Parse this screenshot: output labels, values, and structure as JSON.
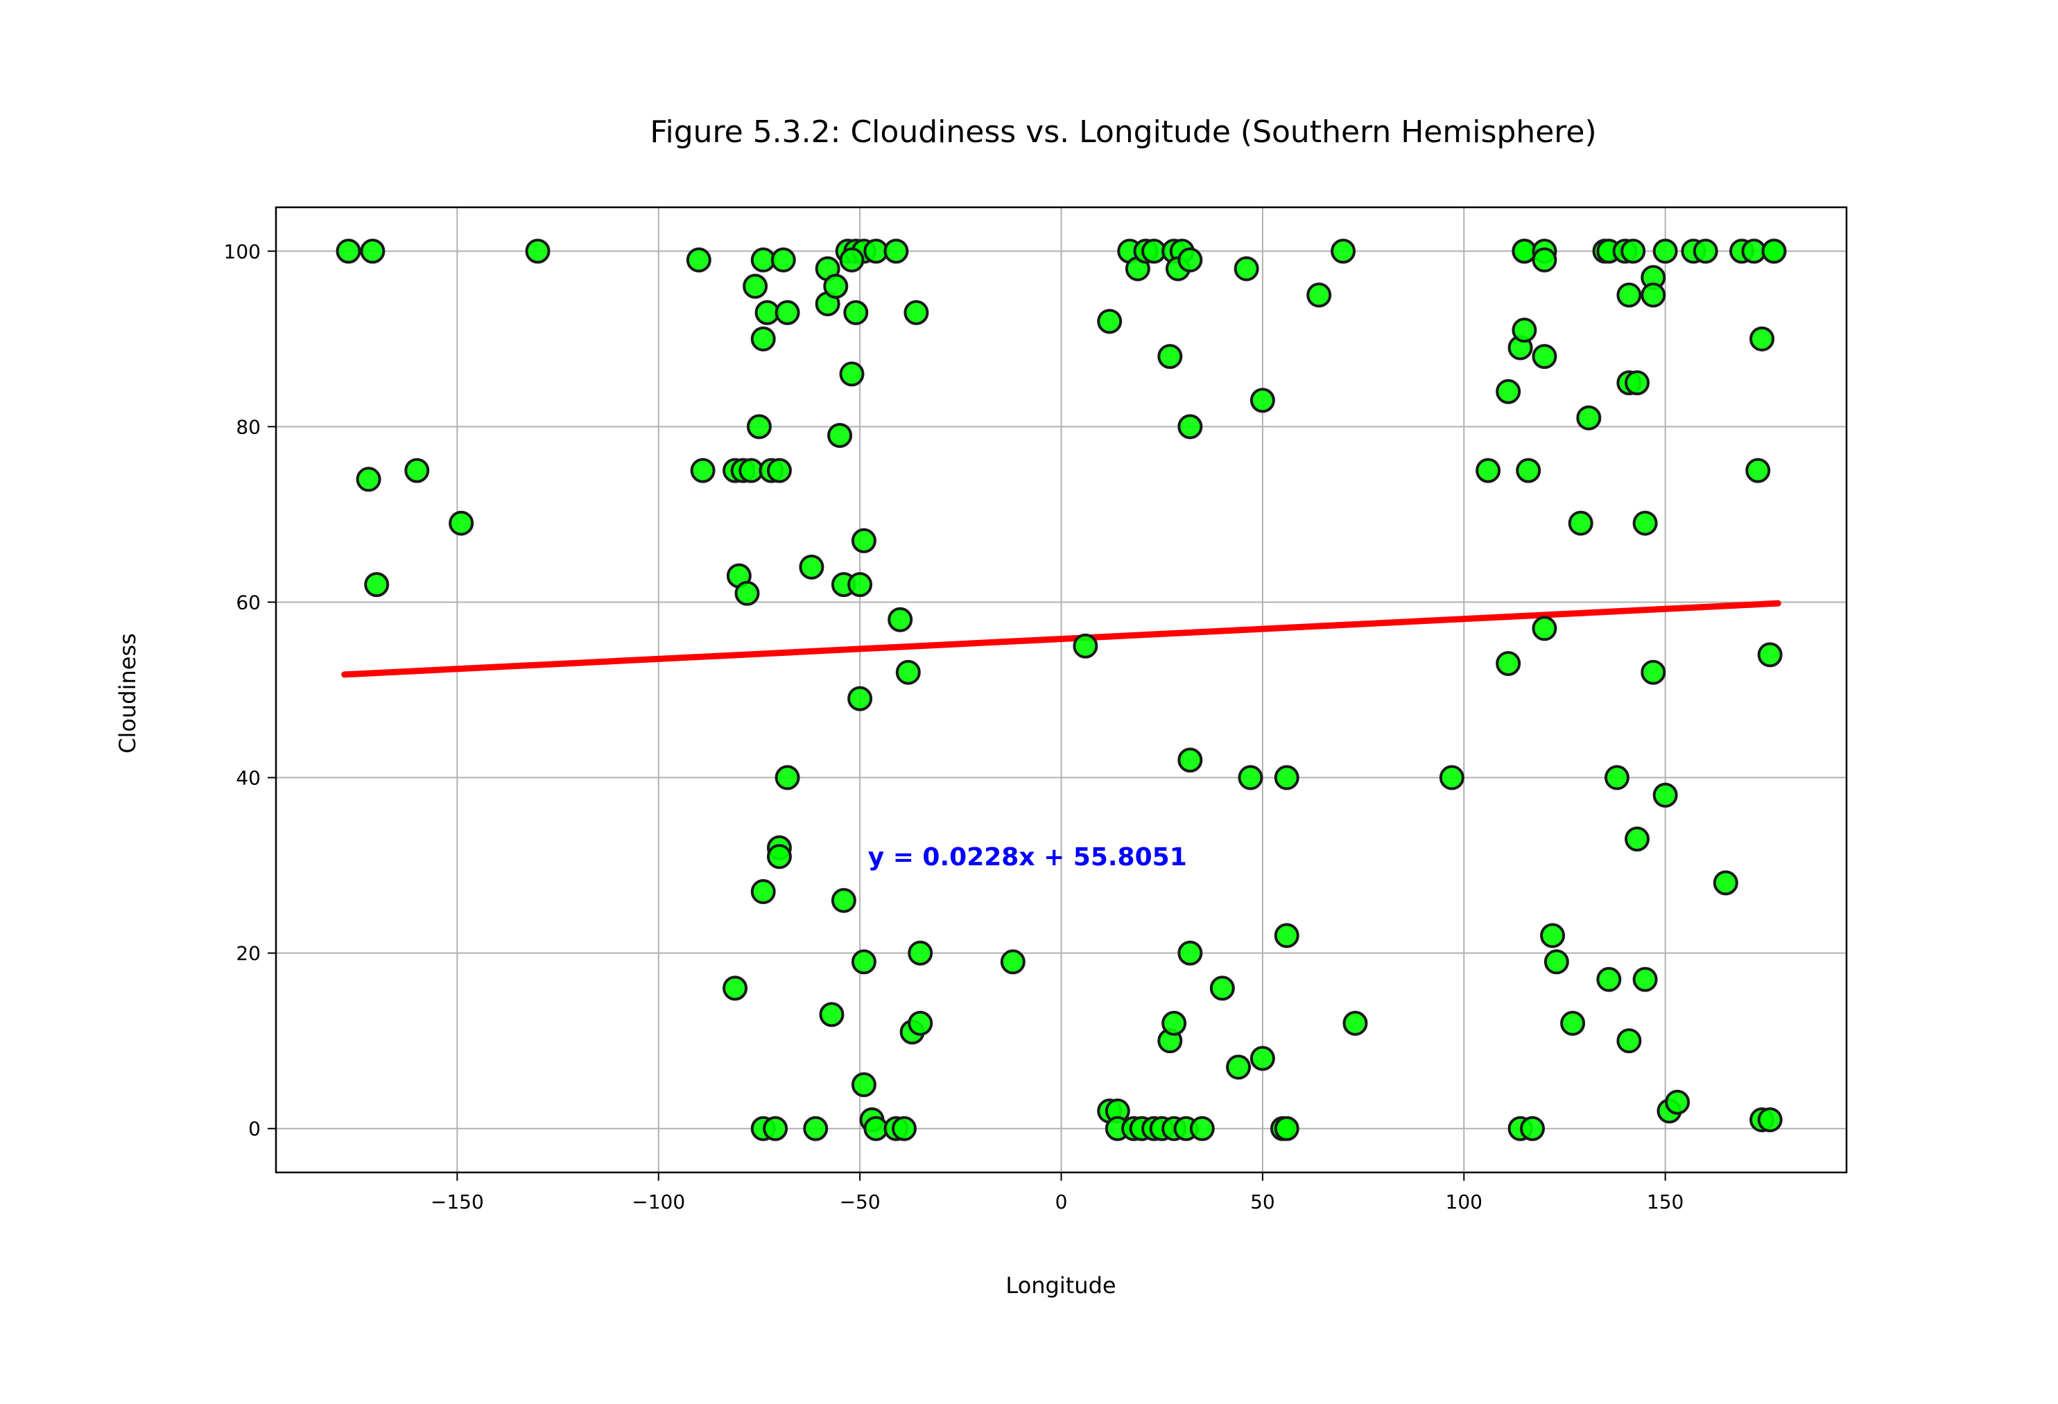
{
  "chart_data": {
    "type": "scatter",
    "title": "Figure 5.3.2: Cloudiness vs. Longitude (Southern Hemisphere)",
    "xlabel": "Longitude",
    "ylabel": "Cloudiness",
    "xlim": [
      -195,
      195
    ],
    "ylim": [
      -5,
      105
    ],
    "xticks": [
      -150,
      -100,
      -50,
      0,
      50,
      100,
      150
    ],
    "xtick_labels": [
      "−150",
      "−100",
      "−50",
      "0",
      "50",
      "100",
      "150"
    ],
    "yticks": [
      0,
      20,
      40,
      60,
      80,
      100
    ],
    "ytick_labels": [
      "0",
      "20",
      "40",
      "60",
      "80",
      "100"
    ],
    "grid": true,
    "point_color": "#00ff00",
    "point_edge_color": "#1a1a1a",
    "line_color": "#ff0000",
    "annotation_color": "#0000ff",
    "annotation": {
      "text": "y = 0.0228x + 55.8051",
      "x": -48,
      "y": 30
    },
    "regression": {
      "slope": 0.0228,
      "intercept": 55.8051,
      "x_range": [
        -178,
        178
      ]
    },
    "points": [
      [
        -177,
        100
      ],
      [
        -171,
        100
      ],
      [
        -130,
        100
      ],
      [
        -90,
        99
      ],
      [
        -74,
        99
      ],
      [
        -69,
        99
      ],
      [
        -53,
        100
      ],
      [
        -51,
        100
      ],
      [
        -49,
        100
      ],
      [
        -46,
        100
      ],
      [
        -41,
        100
      ],
      [
        -76,
        96
      ],
      [
        -73,
        93
      ],
      [
        -68,
        93
      ],
      [
        -74,
        90
      ],
      [
        -58,
        98
      ],
      [
        -58,
        94
      ],
      [
        -56,
        96
      ],
      [
        -52,
        99
      ],
      [
        -51,
        93
      ],
      [
        -36,
        93
      ],
      [
        -52,
        86
      ],
      [
        -75,
        80
      ],
      [
        -55,
        79
      ],
      [
        -89,
        75
      ],
      [
        -81,
        75
      ],
      [
        -79,
        75
      ],
      [
        -77,
        75
      ],
      [
        -72,
        75
      ],
      [
        -70,
        75
      ],
      [
        -172,
        74
      ],
      [
        -160,
        75
      ],
      [
        -149,
        69
      ],
      [
        -170,
        62
      ],
      [
        -49,
        67
      ],
      [
        -80,
        63
      ],
      [
        -78,
        61
      ],
      [
        -62,
        64
      ],
      [
        -54,
        62
      ],
      [
        -50,
        62
      ],
      [
        -40,
        58
      ],
      [
        -38,
        52
      ],
      [
        -50,
        49
      ],
      [
        -68,
        40
      ],
      [
        -70,
        32
      ],
      [
        -70,
        31
      ],
      [
        -74,
        27
      ],
      [
        -54,
        26
      ],
      [
        -49,
        19
      ],
      [
        -35,
        20
      ],
      [
        -12,
        19
      ],
      [
        -81,
        16
      ],
      [
        -57,
        13
      ],
      [
        -37,
        11
      ],
      [
        -35,
        12
      ],
      [
        -49,
        5
      ],
      [
        -74,
        0
      ],
      [
        -71,
        0
      ],
      [
        -61,
        0
      ],
      [
        -47,
        1
      ],
      [
        -46,
        0
      ],
      [
        -41,
        0
      ],
      [
        -39,
        0
      ],
      [
        6,
        55
      ],
      [
        12,
        92
      ],
      [
        17,
        100
      ],
      [
        19,
        98
      ],
      [
        21,
        100
      ],
      [
        23,
        100
      ],
      [
        28,
        100
      ],
      [
        30,
        100
      ],
      [
        29,
        98
      ],
      [
        32,
        99
      ],
      [
        46,
        98
      ],
      [
        27,
        88
      ],
      [
        32,
        80
      ],
      [
        50,
        83
      ],
      [
        64,
        95
      ],
      [
        70,
        100
      ],
      [
        32,
        42
      ],
      [
        47,
        40
      ],
      [
        56,
        40
      ],
      [
        32,
        20
      ],
      [
        56,
        22
      ],
      [
        40,
        16
      ],
      [
        27,
        10
      ],
      [
        28,
        12
      ],
      [
        44,
        7
      ],
      [
        50,
        8
      ],
      [
        12,
        2
      ],
      [
        14,
        2
      ],
      [
        14,
        0
      ],
      [
        18,
        0
      ],
      [
        20,
        0
      ],
      [
        23,
        0
      ],
      [
        25,
        0
      ],
      [
        28,
        0
      ],
      [
        31,
        0
      ],
      [
        35,
        0
      ],
      [
        55,
        0
      ],
      [
        56,
        0
      ],
      [
        73,
        12
      ],
      [
        97,
        40
      ],
      [
        106,
        75
      ],
      [
        111,
        84
      ],
      [
        111,
        53
      ],
      [
        114,
        89
      ],
      [
        115,
        91
      ],
      [
        116,
        75
      ],
      [
        115,
        100
      ],
      [
        115,
        100
      ],
      [
        120,
        100
      ],
      [
        120,
        99
      ],
      [
        120,
        88
      ],
      [
        120,
        57
      ],
      [
        129,
        69
      ],
      [
        131,
        81
      ],
      [
        135,
        100
      ],
      [
        136,
        100
      ],
      [
        140,
        100
      ],
      [
        142,
        100
      ],
      [
        141,
        95
      ],
      [
        141,
        85
      ],
      [
        143,
        85
      ],
      [
        145,
        69
      ],
      [
        147,
        97
      ],
      [
        147,
        95
      ],
      [
        147,
        52
      ],
      [
        150,
        100
      ],
      [
        157,
        100
      ],
      [
        160,
        100
      ],
      [
        169,
        100
      ],
      [
        172,
        100
      ],
      [
        177,
        100
      ],
      [
        177,
        100
      ],
      [
        173,
        75
      ],
      [
        174,
        90
      ],
      [
        176,
        54
      ],
      [
        138,
        40
      ],
      [
        150,
        38
      ],
      [
        143,
        33
      ],
      [
        165,
        28
      ],
      [
        122,
        22
      ],
      [
        123,
        19
      ],
      [
        136,
        17
      ],
      [
        145,
        17
      ],
      [
        127,
        12
      ],
      [
        141,
        10
      ],
      [
        151,
        2
      ],
      [
        153,
        3
      ],
      [
        114,
        0
      ],
      [
        117,
        0
      ],
      [
        174,
        1
      ],
      [
        176,
        1
      ]
    ]
  }
}
